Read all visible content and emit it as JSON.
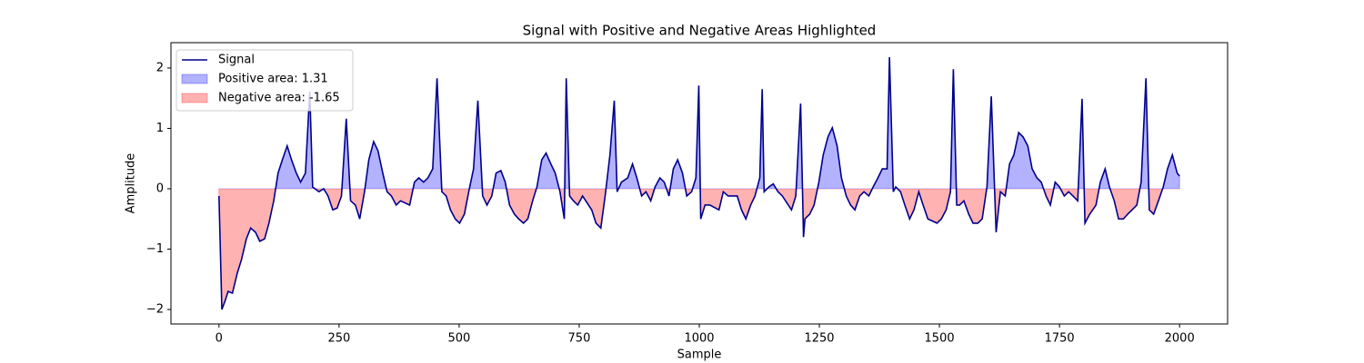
{
  "chart_data": {
    "type": "line",
    "title": "Signal with Positive and Negative Areas Highlighted",
    "xlabel": "Sample",
    "ylabel": "Amplitude",
    "x": [
      0,
      6,
      13,
      19,
      28,
      38,
      47,
      57,
      66,
      76,
      85,
      95,
      104,
      114,
      123,
      132,
      142,
      151,
      161,
      170,
      180,
      189,
      195,
      208,
      218,
      227,
      237,
      246,
      255,
      265,
      274,
      284,
      293,
      303,
      312,
      322,
      331,
      341,
      350,
      359,
      369,
      378,
      397,
      407,
      416,
      426,
      435,
      445,
      454,
      464,
      473,
      482,
      492,
      501,
      511,
      520,
      530,
      539,
      549,
      558,
      568,
      577,
      587,
      596,
      605,
      615,
      624,
      634,
      643,
      653,
      662,
      672,
      681,
      691,
      700,
      710,
      719,
      723,
      730,
      738,
      747,
      757,
      776,
      785,
      795,
      804,
      814,
      823,
      829,
      838,
      851,
      861,
      870,
      880,
      889,
      899,
      908,
      918,
      927,
      937,
      946,
      955,
      965,
      974,
      984,
      993,
      999,
      1003,
      1012,
      1022,
      1041,
      1050,
      1060,
      1079,
      1088,
      1097,
      1107,
      1116,
      1126,
      1131,
      1135,
      1145,
      1154,
      1164,
      1173,
      1192,
      1201,
      1211,
      1217,
      1220,
      1230,
      1239,
      1249,
      1258,
      1268,
      1277,
      1287,
      1296,
      1306,
      1315,
      1324,
      1334,
      1343,
      1353,
      1362,
      1372,
      1381,
      1391,
      1396,
      1404,
      1409,
      1419,
      1428,
      1438,
      1447,
      1457,
      1466,
      1476,
      1495,
      1504,
      1514,
      1523,
      1529,
      1536,
      1542,
      1551,
      1561,
      1570,
      1580,
      1589,
      1599,
      1608,
      1618,
      1627,
      1637,
      1646,
      1655,
      1665,
      1674,
      1684,
      1693,
      1703,
      1712,
      1722,
      1731,
      1741,
      1750,
      1760,
      1769,
      1778,
      1788,
      1797,
      1803,
      1813,
      1826,
      1835,
      1845,
      1854,
      1864,
      1873,
      1883,
      1892,
      1901,
      1911,
      1920,
      1930,
      1937,
      1946,
      1956,
      1966,
      1975,
      1985,
      1995,
      2000
    ],
    "series": [
      {
        "name": "Signal",
        "color": "#00008b",
        "values": [
          -0.12,
          -2.0,
          -1.85,
          -1.7,
          -1.73,
          -1.4,
          -1.17,
          -0.83,
          -0.65,
          -0.72,
          -0.87,
          -0.83,
          -0.57,
          -0.2,
          0.26,
          0.48,
          0.71,
          0.48,
          0.26,
          0.11,
          0.26,
          1.61,
          0.03,
          -0.05,
          0,
          -0.12,
          -0.35,
          -0.32,
          -0.12,
          1.16,
          -0.2,
          -0.27,
          -0.5,
          -0.05,
          0.48,
          0.78,
          0.63,
          0.26,
          -0.05,
          -0.12,
          -0.27,
          -0.2,
          -0.27,
          0.11,
          0.18,
          0.11,
          0.18,
          0.33,
          1.83,
          -0.05,
          -0.12,
          -0.35,
          -0.5,
          -0.57,
          -0.42,
          -0.05,
          0.33,
          1.46,
          -0.12,
          -0.27,
          -0.12,
          0.26,
          0.3,
          0.11,
          -0.27,
          -0.42,
          -0.5,
          -0.57,
          -0.5,
          -0.2,
          0.03,
          0.48,
          0.59,
          0.41,
          0.26,
          -0.05,
          -0.5,
          1.83,
          -0.12,
          -0.2,
          -0.27,
          -0.12,
          -0.35,
          -0.57,
          -0.65,
          -0.12,
          0.56,
          1.46,
          -0.05,
          0.11,
          0.18,
          0.41,
          0.18,
          -0.12,
          -0.05,
          -0.2,
          0.03,
          0.18,
          0.11,
          -0.12,
          0.33,
          0.48,
          0.26,
          -0.12,
          -0.05,
          0.18,
          1.71,
          -0.5,
          -0.27,
          -0.27,
          -0.35,
          -0.05,
          -0.12,
          -0.12,
          -0.35,
          -0.5,
          -0.27,
          -0.12,
          0.18,
          1.65,
          -0.05,
          0.03,
          0.08,
          -0.05,
          -0.12,
          -0.35,
          -0.12,
          1.41,
          -0.8,
          -0.5,
          -0.42,
          -0.27,
          0.11,
          0.56,
          0.86,
          1.01,
          0.71,
          0.18,
          -0.12,
          -0.27,
          -0.35,
          -0.12,
          -0.05,
          -0.12,
          0.03,
          0.18,
          0.33,
          0.33,
          2.18,
          -0.05,
          0.03,
          -0.05,
          -0.27,
          -0.5,
          -0.35,
          -0.05,
          -0.27,
          -0.5,
          -0.57,
          -0.5,
          -0.35,
          -0.05,
          1.98,
          -0.27,
          -0.27,
          -0.2,
          -0.42,
          -0.57,
          -0.57,
          -0.5,
          0.03,
          1.53,
          -0.72,
          -0.05,
          -0.12,
          0.41,
          0.56,
          0.93,
          0.86,
          0.71,
          0.33,
          0.18,
          0.11,
          -0.12,
          -0.27,
          0.11,
          0.03,
          -0.12,
          -0.05,
          -0.12,
          -0.2,
          1.49,
          -0.57,
          -0.42,
          -0.27,
          0.11,
          0.33,
          0.03,
          -0.2,
          -0.5,
          -0.5,
          -0.42,
          -0.35,
          -0.27,
          0.11,
          1.83,
          -0.35,
          -0.42,
          -0.2,
          0.03,
          0.33,
          0.56,
          0.26,
          0.21
        ]
      }
    ],
    "areas": [
      {
        "name": "Positive area: 1.31",
        "color": "#0000ff"
      },
      {
        "name": "Negative area: -1.65",
        "color": "#ff0000"
      }
    ],
    "xlim": [
      -100,
      2100
    ],
    "xticks": [
      0,
      250,
      500,
      750,
      1000,
      1250,
      1500,
      1750,
      2000
    ],
    "ylim": [
      -2.24,
      2.42
    ],
    "yticks": [
      {
        "value": -2,
        "label": "−2"
      },
      {
        "value": -1,
        "label": "−1"
      },
      0,
      1,
      2
    ],
    "legend": "upper left"
  }
}
